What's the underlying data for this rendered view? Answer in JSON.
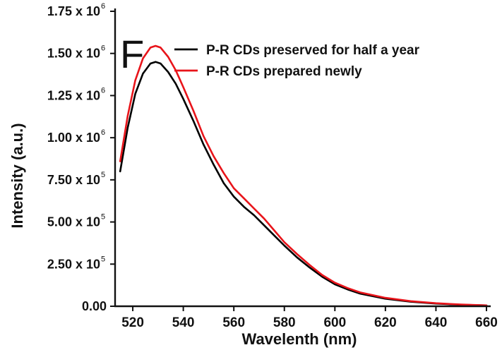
{
  "chart_data": {
    "type": "line",
    "panel_label": "F",
    "xlabel": "Wavelenth (nm)",
    "ylabel": "Intensity (a.u.)",
    "xlim": [
      513,
      660
    ],
    "ylim": [
      0,
      1750000
    ],
    "x_ticks": [
      {
        "value": 520,
        "label": "520"
      },
      {
        "value": 540,
        "label": "540"
      },
      {
        "value": 560,
        "label": "560"
      },
      {
        "value": 580,
        "label": "580"
      },
      {
        "value": 600,
        "label": "600"
      },
      {
        "value": 620,
        "label": "620"
      },
      {
        "value": 640,
        "label": "640"
      },
      {
        "value": 660,
        "label": "660"
      }
    ],
    "y_ticks": [
      {
        "value": 0,
        "mantissa": "0.00",
        "exponent": ""
      },
      {
        "value": 250000,
        "mantissa": "2.50 x 10",
        "exponent": "5"
      },
      {
        "value": 500000,
        "mantissa": "5.00 x 10",
        "exponent": "5"
      },
      {
        "value": 750000,
        "mantissa": "7.50 x 10",
        "exponent": "5"
      },
      {
        "value": 1000000,
        "mantissa": "1.00 x 10",
        "exponent": "6"
      },
      {
        "value": 1250000,
        "mantissa": "1.25 x 10",
        "exponent": "6"
      },
      {
        "value": 1500000,
        "mantissa": "1.50 x 10",
        "exponent": "6"
      },
      {
        "value": 1750000,
        "mantissa": "1.75 x 10",
        "exponent": "6"
      }
    ],
    "grid": false,
    "legend_position": "top-right",
    "series": [
      {
        "name": "P-R CDs preserved for half a year",
        "color": "#000000",
        "points": [
          [
            515,
            800000
          ],
          [
            518,
            1060000
          ],
          [
            521,
            1260000
          ],
          [
            524,
            1380000
          ],
          [
            527,
            1440000
          ],
          [
            529,
            1450000
          ],
          [
            531,
            1440000
          ],
          [
            534,
            1390000
          ],
          [
            537,
            1320000
          ],
          [
            540,
            1230000
          ],
          [
            544,
            1100000
          ],
          [
            548,
            960000
          ],
          [
            552,
            840000
          ],
          [
            556,
            730000
          ],
          [
            560,
            650000
          ],
          [
            564,
            590000
          ],
          [
            568,
            540000
          ],
          [
            572,
            480000
          ],
          [
            576,
            420000
          ],
          [
            580,
            360000
          ],
          [
            585,
            290000
          ],
          [
            590,
            230000
          ],
          [
            595,
            175000
          ],
          [
            600,
            130000
          ],
          [
            605,
            100000
          ],
          [
            610,
            75000
          ],
          [
            620,
            45000
          ],
          [
            630,
            27000
          ],
          [
            640,
            16000
          ],
          [
            650,
            9000
          ],
          [
            660,
            5000
          ]
        ]
      },
      {
        "name": "P-R CDs prepared newly",
        "color": "#e8141a",
        "points": [
          [
            515,
            860000
          ],
          [
            518,
            1130000
          ],
          [
            521,
            1340000
          ],
          [
            524,
            1470000
          ],
          [
            527,
            1535000
          ],
          [
            529,
            1545000
          ],
          [
            531,
            1535000
          ],
          [
            534,
            1480000
          ],
          [
            537,
            1400000
          ],
          [
            540,
            1300000
          ],
          [
            544,
            1160000
          ],
          [
            548,
            1010000
          ],
          [
            552,
            890000
          ],
          [
            556,
            790000
          ],
          [
            560,
            700000
          ],
          [
            564,
            640000
          ],
          [
            568,
            580000
          ],
          [
            572,
            520000
          ],
          [
            576,
            450000
          ],
          [
            580,
            380000
          ],
          [
            585,
            310000
          ],
          [
            590,
            245000
          ],
          [
            595,
            185000
          ],
          [
            600,
            140000
          ],
          [
            605,
            108000
          ],
          [
            610,
            82000
          ],
          [
            620,
            50000
          ],
          [
            630,
            30000
          ],
          [
            640,
            18000
          ],
          [
            650,
            10000
          ],
          [
            660,
            5000
          ]
        ]
      }
    ]
  }
}
